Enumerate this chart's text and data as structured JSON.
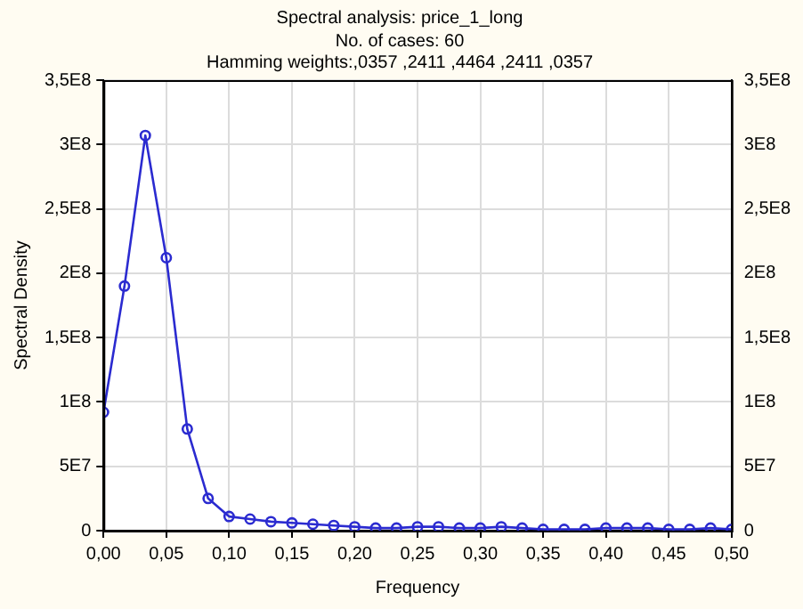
{
  "chart_data": {
    "type": "line",
    "title": "Spectral analysis: price_1_long",
    "subtitle": "No. of cases: 60",
    "annotations": [
      "Hamming weights:,0357 ,2411 ,4464 ,2411 ,0357"
    ],
    "xlabel": "Frequency",
    "ylabel": "Spectral Density",
    "x": [
      0,
      0.0167,
      0.0333,
      0.05,
      0.0667,
      0.0833,
      0.1,
      0.1167,
      0.1333,
      0.15,
      0.1667,
      0.1833,
      0.2,
      0.2167,
      0.2333,
      0.25,
      0.2667,
      0.2833,
      0.3,
      0.3167,
      0.3333,
      0.35,
      0.3667,
      0.3833,
      0.4,
      0.4167,
      0.4333,
      0.45,
      0.4667,
      0.4833,
      0.5
    ],
    "series": [
      {
        "color": "#2b2bd0",
        "values": [
          92000000,
          190000000,
          307000000,
          212000000,
          79000000,
          25000000,
          11000000,
          9000000,
          7000000,
          6000000,
          5000000,
          4000000,
          3000000,
          2000000,
          2000000,
          3000000,
          3000000,
          2000000,
          2000000,
          3000000,
          2000000,
          1000000,
          1000000,
          1000000,
          2000000,
          2000000,
          2000000,
          1000000,
          1000000,
          2000000,
          1000000
        ]
      }
    ],
    "xlim": [
      0,
      0.5
    ],
    "xticks": [
      {
        "value": 0,
        "label": "0,00"
      },
      {
        "value": 0.05,
        "label": "0,05"
      },
      {
        "value": 0.1,
        "label": "0,10"
      },
      {
        "value": 0.15,
        "label": "0,15"
      },
      {
        "value": 0.2,
        "label": "0,20"
      },
      {
        "value": 0.25,
        "label": "0,25"
      },
      {
        "value": 0.3,
        "label": "0,30"
      },
      {
        "value": 0.35,
        "label": "0,35"
      },
      {
        "value": 0.4,
        "label": "0,40"
      },
      {
        "value": 0.45,
        "label": "0,45"
      },
      {
        "value": 0.5,
        "label": "0,50"
      }
    ],
    "ylim": [
      0,
      350000000
    ],
    "yticks": [
      0,
      {
        "value": 50000000,
        "label": "5E7"
      },
      {
        "value": 100000000,
        "label": "1E8"
      },
      {
        "value": 150000000,
        "label": "1,5E8"
      },
      {
        "value": 200000000,
        "label": "2E8"
      },
      {
        "value": 250000000,
        "label": "2,5E8"
      },
      {
        "value": 300000000,
        "label": "3E8"
      },
      {
        "value": 350000000,
        "label": "3,5E8"
      }
    ],
    "y2lim": [
      0,
      350000000
    ],
    "y2ticks": [
      0,
      {
        "value": 50000000,
        "label": "5E7"
      },
      {
        "value": 100000000,
        "label": "1E8"
      },
      {
        "value": 150000000,
        "label": "1,5E8"
      },
      {
        "value": 200000000,
        "label": "2E8"
      },
      {
        "value": 250000000,
        "label": "2,5E8"
      },
      {
        "value": 300000000,
        "label": "3E8"
      },
      {
        "value": 350000000,
        "label": "3,5E8"
      }
    ],
    "grid": true,
    "legend": false,
    "marker": "circle",
    "line_style": "solid"
  }
}
